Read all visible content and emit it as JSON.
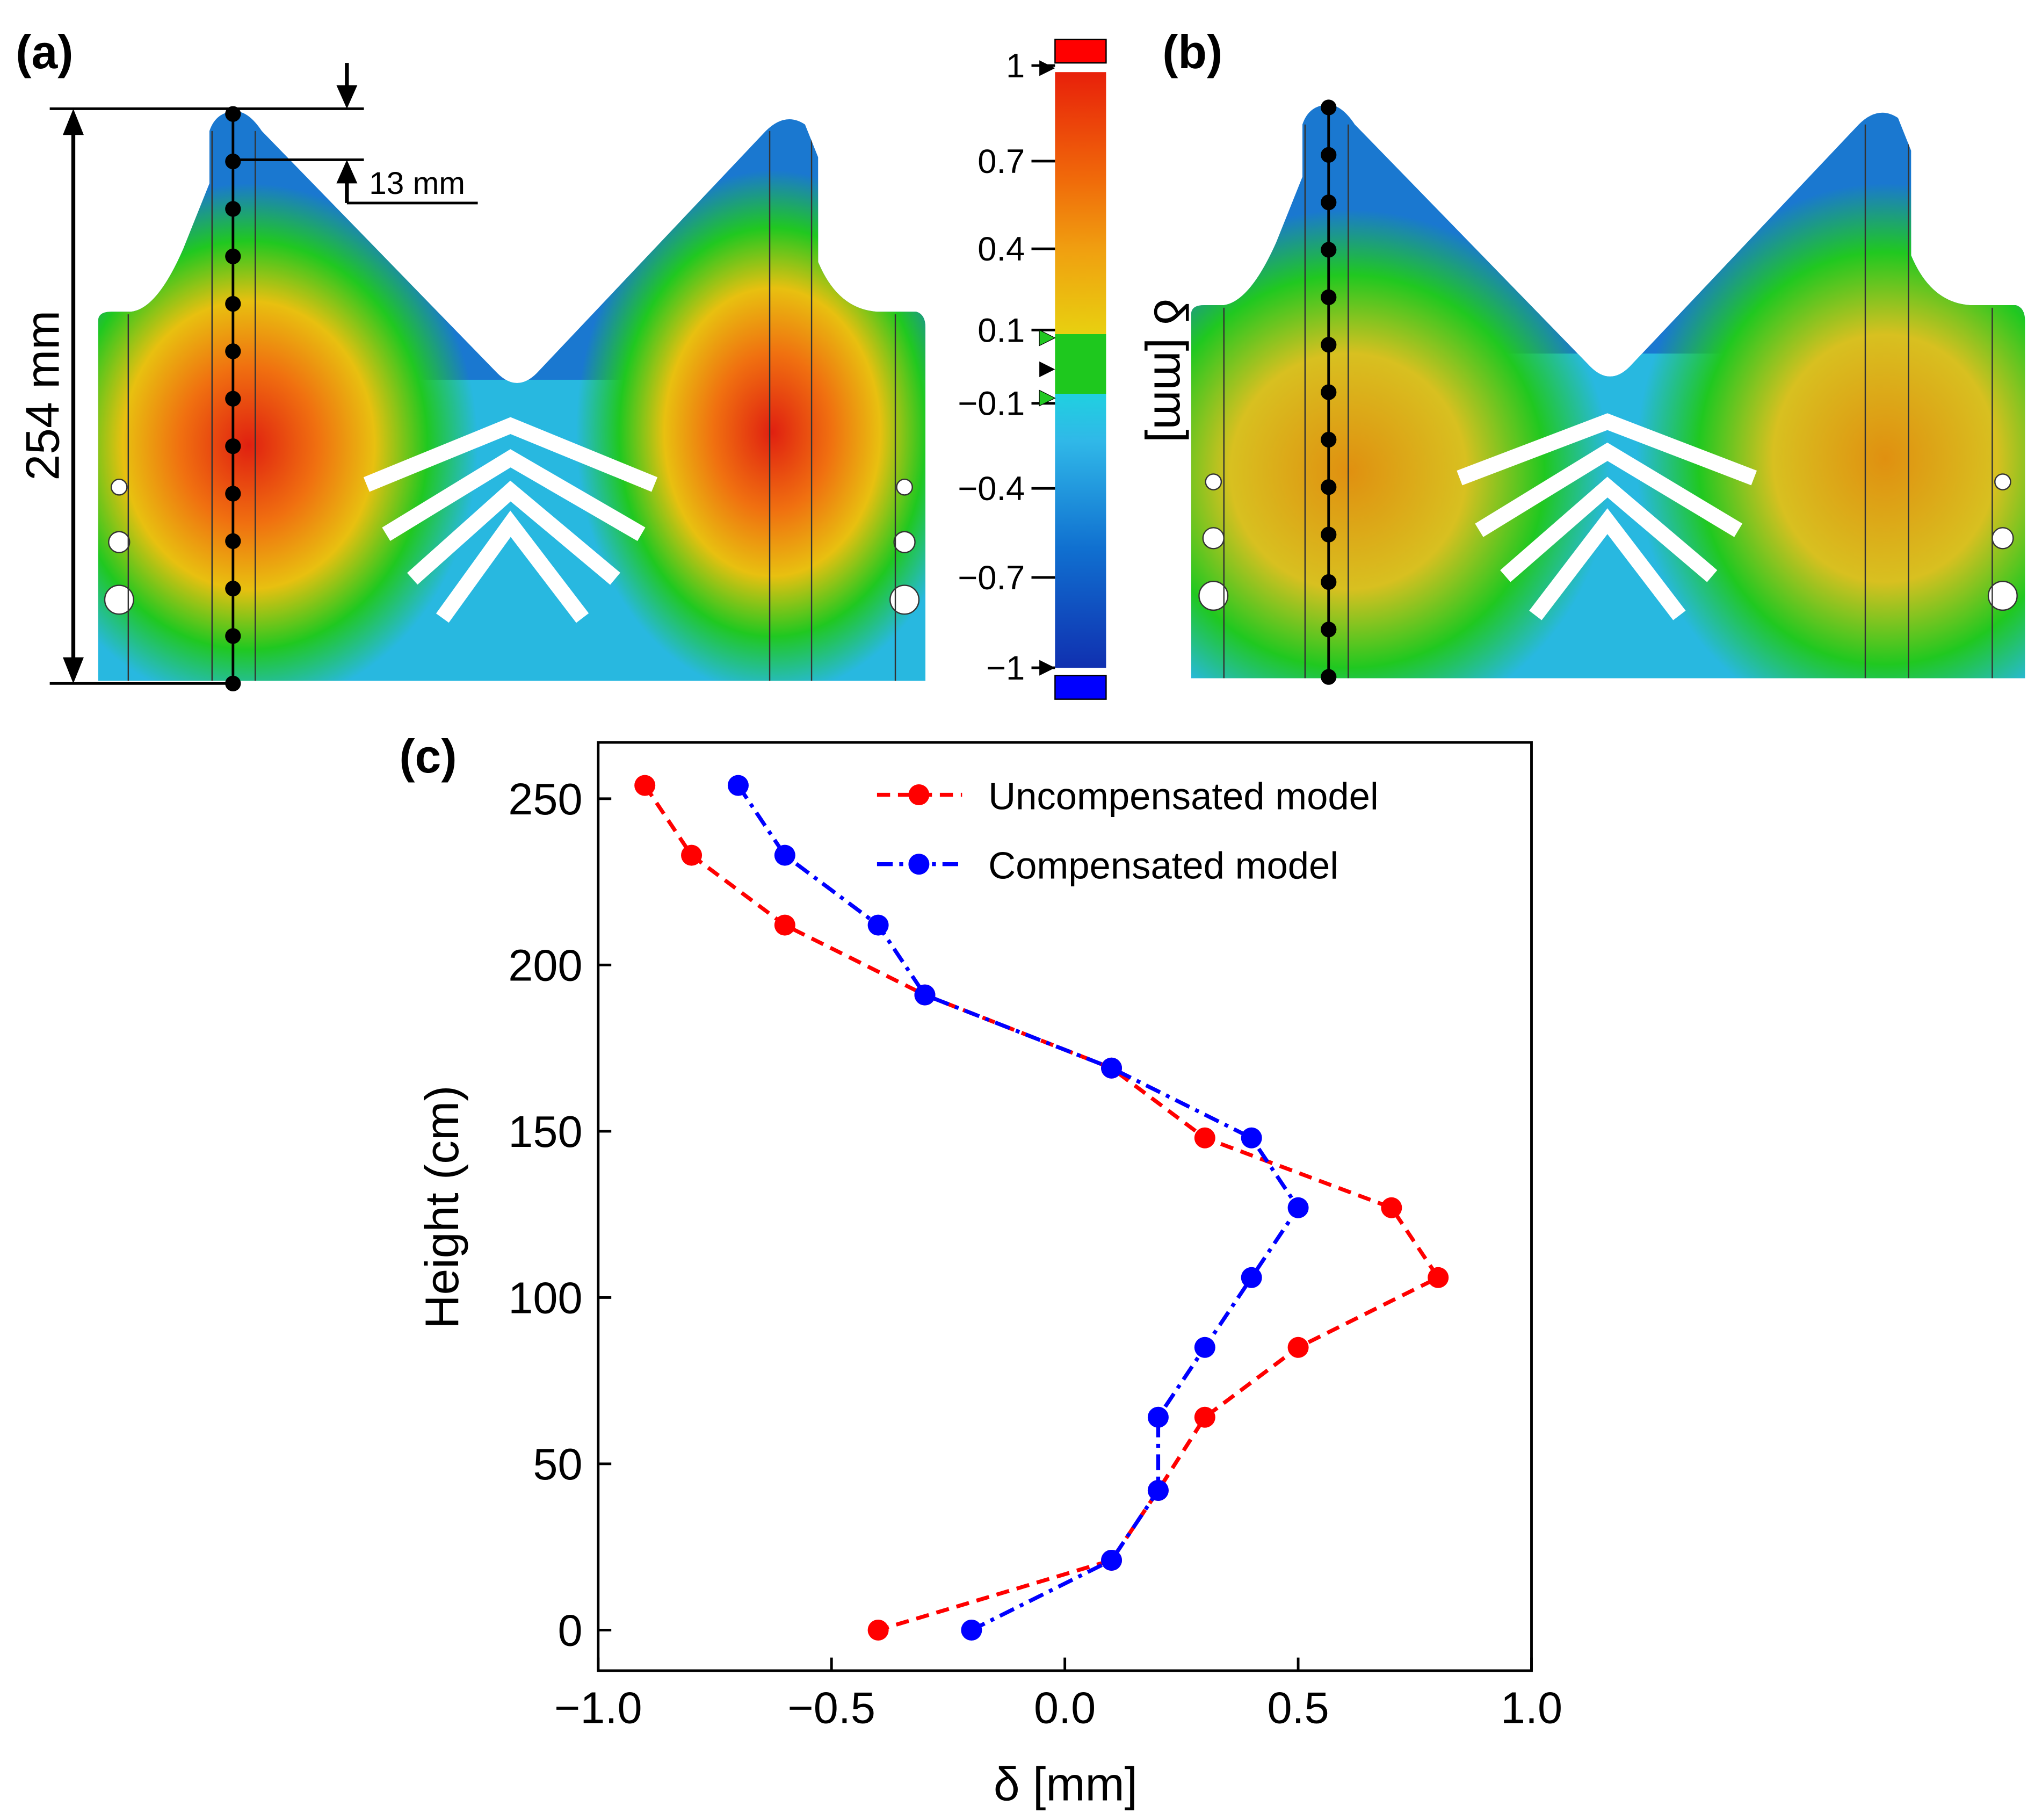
{
  "panels": {
    "a": {
      "label": "(a)",
      "height_dim": "254 mm",
      "spacing_dim": "13 mm"
    },
    "b": {
      "label": "(b)"
    },
    "c": {
      "label": "(c)"
    }
  },
  "colorbar": {
    "title": "δ [mm]",
    "ticks": [
      "1",
      "0.7",
      "0.4",
      "0.1",
      "−0.1",
      "−0.4",
      "−0.7",
      "−1"
    ],
    "colors": {
      "max": "#ff0000",
      "min": "#0000ff",
      "green": "#1ec81e",
      "cyan": "#20d0e0"
    }
  },
  "chart_data": {
    "type": "line",
    "xlabel": "δ [mm]",
    "ylabel": "Height (cm)",
    "xlim": [
      -1.0,
      1.0
    ],
    "ylim": [
      -12,
      268
    ],
    "xticks": [
      "−1.0",
      "−0.5",
      "0.0",
      "0.5",
      "1.0"
    ],
    "xtick_values": [
      -1.0,
      -0.5,
      0.0,
      0.5,
      1.0
    ],
    "yticks": [
      "0",
      "50",
      "100",
      "150",
      "200",
      "250"
    ],
    "ytick_values": [
      0,
      50,
      100,
      150,
      200,
      250
    ],
    "legend_position": "top-right",
    "series": [
      {
        "name": "Uncompensated model",
        "color": "#ff0000",
        "style": "dashed",
        "x": [
          -0.9,
          -0.8,
          -0.6,
          -0.3,
          0.1,
          0.3,
          0.7,
          0.8,
          0.5,
          0.3,
          0.2,
          0.1,
          -0.4
        ],
        "y": [
          254,
          233,
          212,
          191,
          169,
          148,
          127,
          106,
          85,
          64,
          42,
          21,
          0
        ]
      },
      {
        "name": "Compensated model",
        "color": "#0000ff",
        "style": "dashdot",
        "x": [
          -0.7,
          -0.6,
          -0.4,
          -0.3,
          0.1,
          0.4,
          0.5,
          0.4,
          0.3,
          0.2,
          0.2,
          0.1,
          -0.2
        ],
        "y": [
          254,
          233,
          212,
          191,
          169,
          148,
          127,
          106,
          85,
          64,
          42,
          21,
          0
        ]
      }
    ]
  }
}
